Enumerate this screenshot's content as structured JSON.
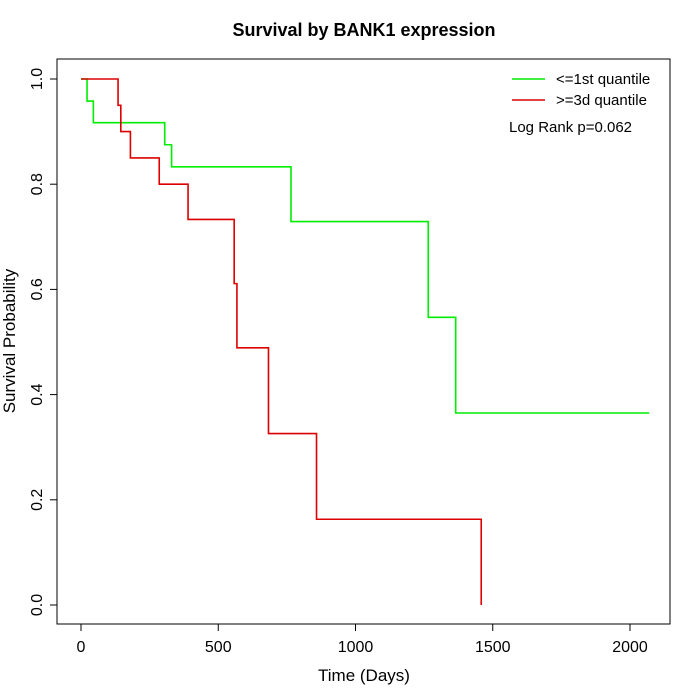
{
  "chart_data": {
    "type": "line",
    "step": true,
    "title": "Survival by BANK1 expression",
    "xlabel": "Time (Days)",
    "ylabel": "Survival Probability",
    "xlim": [
      0,
      2075
    ],
    "ylim": [
      0,
      1.0
    ],
    "x_ticks": [
      0,
      500,
      1000,
      1500,
      2000
    ],
    "y_ticks": [
      0.0,
      0.2,
      0.4,
      0.6,
      0.8,
      1.0
    ],
    "x_tick_labels": [
      "0",
      "500",
      "1000",
      "1500",
      "2000"
    ],
    "y_tick_labels": [
      "0.0",
      "0.2",
      "0.4",
      "0.6",
      "0.8",
      "1.0"
    ],
    "grid": false,
    "legend_position": "top-right",
    "annotation": "Log Rank p=0.062",
    "series": [
      {
        "name": "<=1st quantile",
        "color": "#00ee00",
        "x": [
          0,
          22,
          45,
          305,
          330,
          765,
          1265,
          1365,
          2070
        ],
        "y": [
          1.0,
          0.958,
          0.917,
          0.875,
          0.833,
          0.729,
          0.547,
          0.365,
          0.365
        ]
      },
      {
        "name": ">=3d quantile",
        "color": "#dd0000",
        "x": [
          0,
          135,
          145,
          180,
          285,
          390,
          558,
          568,
          683,
          858,
          1458,
          1458
        ],
        "y": [
          1.0,
          0.95,
          0.9,
          0.85,
          0.8,
          0.733,
          0.611,
          0.489,
          0.326,
          0.163,
          0.163,
          0.0
        ]
      }
    ]
  }
}
